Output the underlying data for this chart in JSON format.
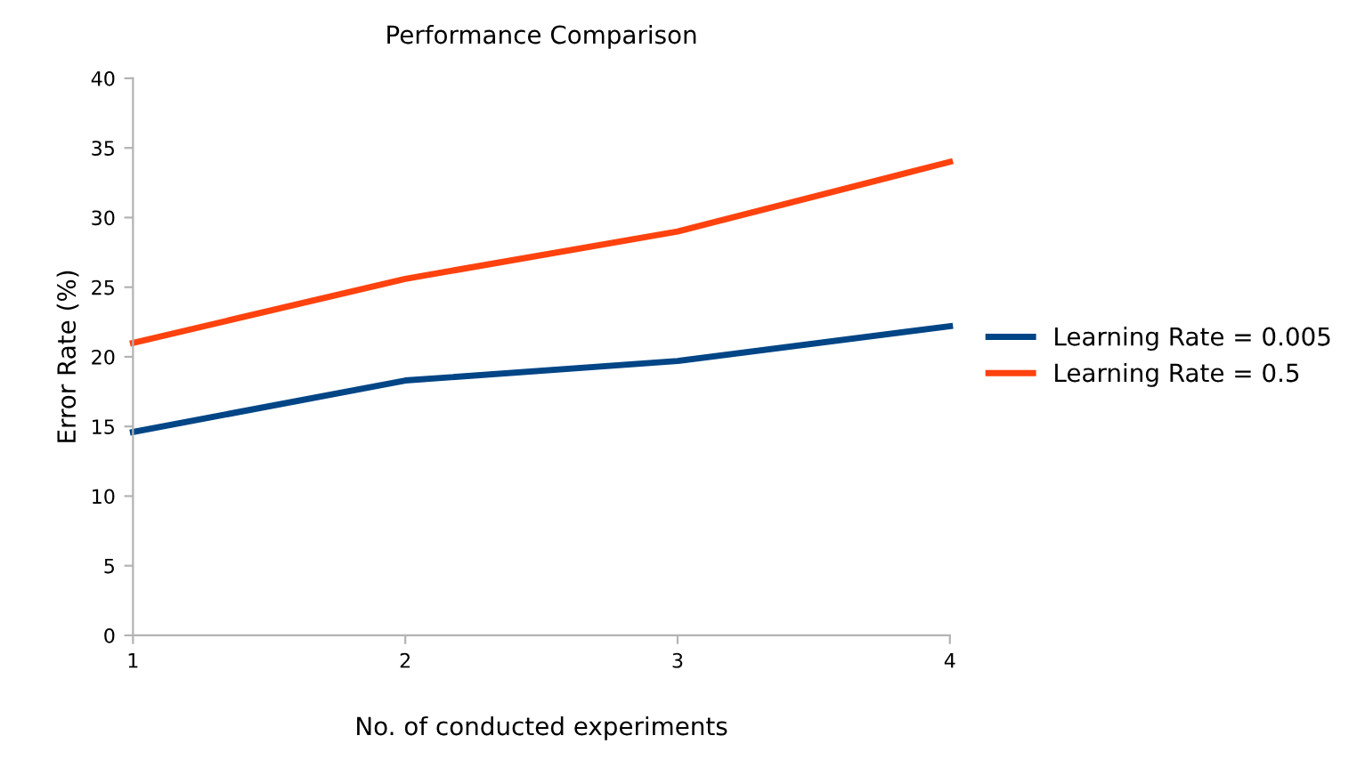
{
  "chart_data": {
    "type": "line",
    "title": "Performance Comparison",
    "xlabel": "No. of conducted experiments",
    "ylabel": "Error Rate (%)",
    "x": [
      1,
      2,
      3,
      4
    ],
    "series": [
      {
        "name": "Learning Rate = 0.005",
        "color": "#004586",
        "values": [
          14.6,
          18.3,
          19.7,
          22.2
        ]
      },
      {
        "name": "Learning Rate = 0.5",
        "color": "#ff420e",
        "values": [
          21.0,
          25.6,
          29.0,
          34.0
        ]
      }
    ],
    "xlim": [
      1,
      4
    ],
    "xticks": [
      1,
      2,
      3,
      4
    ],
    "ylim": [
      0,
      40
    ],
    "yticks": [
      0,
      5,
      10,
      15,
      20,
      25,
      30,
      35,
      40
    ],
    "grid": false,
    "legend": "right",
    "marker": "none",
    "line_style": "solid"
  }
}
